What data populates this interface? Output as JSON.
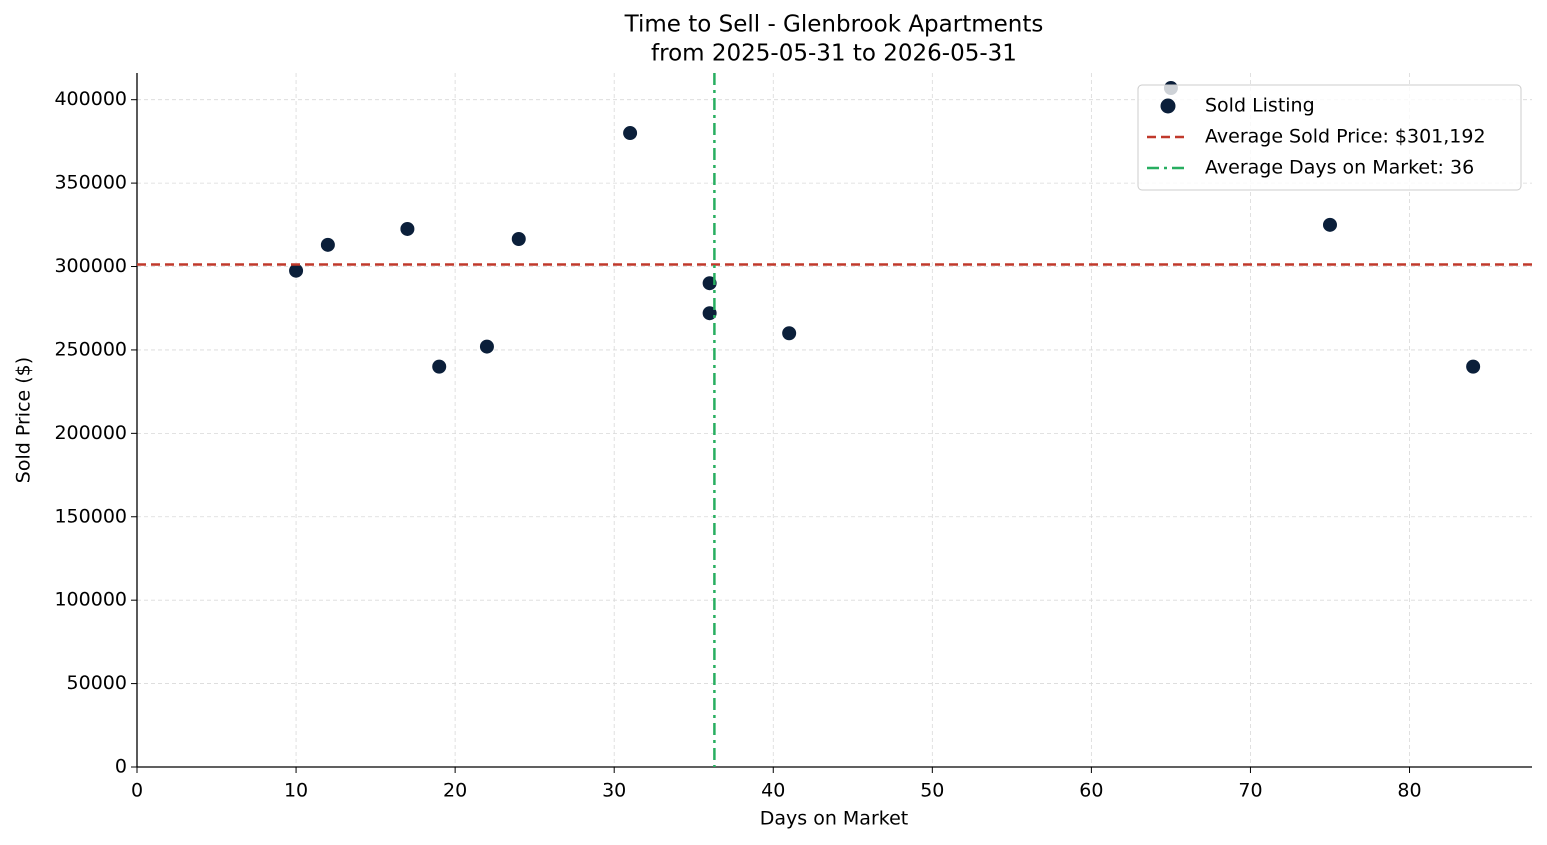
{
  "chart_data": {
    "type": "scatter",
    "title": "Time to Sell - Glenbrook Apartments",
    "subtitle": "from 2025-05-31 to 2026-05-31",
    "x_label": "Days on Market",
    "y_label": "Sold Price ($)",
    "series": [
      {
        "name": "Sold Listing",
        "color": "#0b1f3a",
        "x": [
          10,
          12,
          17,
          19,
          22,
          24,
          31,
          36,
          36,
          41,
          65,
          75,
          84
        ],
        "values": [
          297500,
          313000,
          322500,
          240000,
          252000,
          316500,
          380000,
          290000,
          272000,
          260000,
          407000,
          325000,
          240000
        ]
      }
    ],
    "reference_lines": [
      {
        "name": "Average Sold Price: $301,192",
        "value": 301192,
        "orientation": "horizontal",
        "color": "#c0392b",
        "style": "dashed"
      },
      {
        "name": "Average Days on Market: 36",
        "value": 36.3,
        "orientation": "vertical",
        "color": "#27ae60",
        "style": "dashdot"
      }
    ],
    "xlim": [
      0,
      87.7
    ],
    "ylim": [
      0,
      416000
    ],
    "xticks": [
      0,
      10,
      20,
      30,
      40,
      50,
      60,
      70,
      80
    ],
    "yticks": [
      0,
      50000,
      100000,
      150000,
      200000,
      250000,
      300000,
      350000,
      400000
    ],
    "grid": true,
    "legend_loc": "upper right"
  }
}
